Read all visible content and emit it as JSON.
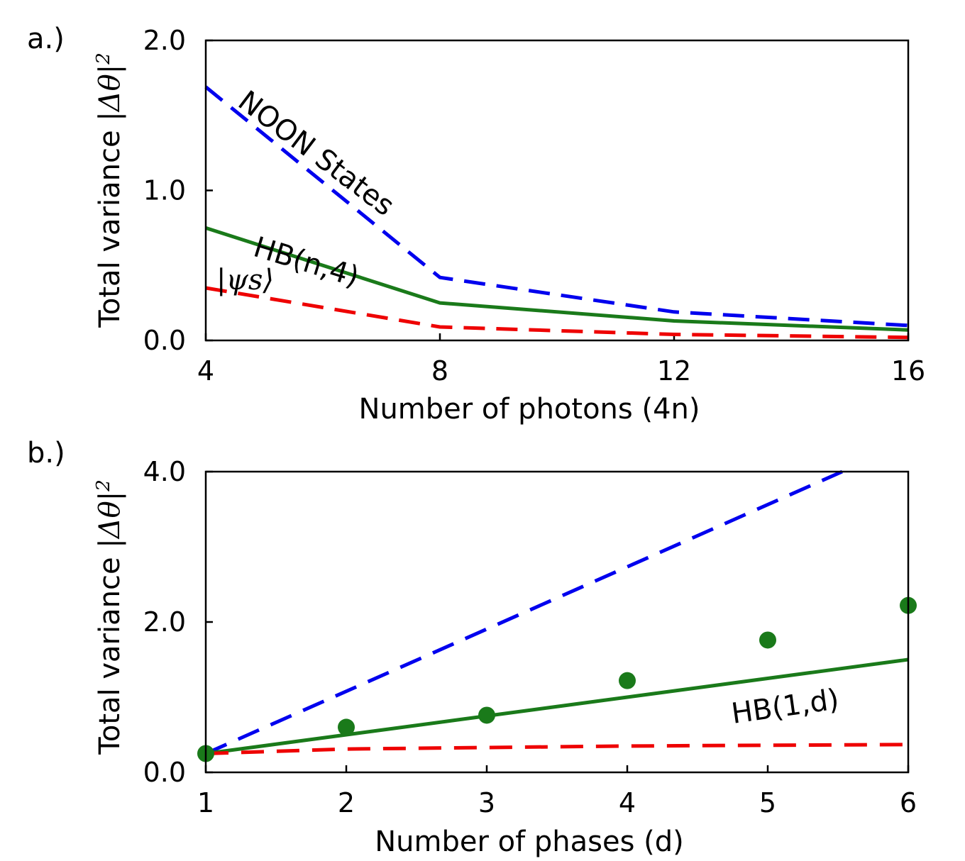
{
  "chart_data": [
    {
      "panel_label": "a.)",
      "type": "line",
      "xlabel": "Number of photons (4n)",
      "ylabel_prefix": "Total variance ",
      "ylabel_math": "|Δθ|",
      "ylabel_exp": "2",
      "xlim": [
        4,
        16
      ],
      "ylim": [
        0,
        2
      ],
      "xticks": [
        4,
        8,
        12,
        16
      ],
      "xtick_labels": [
        "4",
        "8",
        "12",
        "16"
      ],
      "yticks": [
        0,
        1,
        2
      ],
      "ytick_labels": [
        "0.0",
        "1.0",
        "2.0"
      ],
      "series": [
        {
          "name": "NOON States",
          "color": "#0000ee",
          "style": "dashed",
          "x": [
            4,
            8,
            12,
            16
          ],
          "y": [
            1.69,
            0.42,
            0.19,
            0.1
          ]
        },
        {
          "name": "HB(n,4)",
          "color": "#1a7a1a",
          "style": "solid",
          "x": [
            4,
            8,
            12,
            16
          ],
          "y": [
            0.75,
            0.25,
            0.13,
            0.07
          ]
        },
        {
          "name": "|ψs⟩",
          "color": "#ee0000",
          "style": "dashed",
          "x": [
            4,
            8,
            12,
            16
          ],
          "y": [
            0.35,
            0.09,
            0.04,
            0.02
          ]
        }
      ],
      "annotations": [
        "NOON States",
        "HB(n,4)",
        "|ψs⟩"
      ]
    },
    {
      "panel_label": "b.)",
      "type": "line",
      "xlabel": "Number of phases (d)",
      "ylabel_prefix": "Total variance ",
      "ylabel_math": "|Δθ|",
      "ylabel_exp": "2",
      "xlim": [
        1,
        6
      ],
      "ylim": [
        0,
        4
      ],
      "xticks": [
        1,
        2,
        3,
        4,
        5,
        6
      ],
      "xtick_labels": [
        "1",
        "2",
        "3",
        "4",
        "5",
        "6"
      ],
      "yticks": [
        0,
        2,
        4
      ],
      "ytick_labels": [
        "0.0",
        "2.0",
        "4.0"
      ],
      "series": [
        {
          "name": "",
          "color": "#0000ee",
          "style": "dashed",
          "x": [
            1,
            5.53
          ],
          "y": [
            0.25,
            4.0
          ]
        },
        {
          "name": "HB(1,d)",
          "color": "#1a7a1a",
          "style": "solid",
          "x": [
            1,
            6
          ],
          "y": [
            0.25,
            1.5
          ]
        },
        {
          "name": "",
          "color": "#ee0000",
          "style": "dashed",
          "x": [
            1,
            2,
            3,
            4,
            5,
            6
          ],
          "y": [
            0.25,
            0.31,
            0.33,
            0.35,
            0.36,
            0.37
          ]
        },
        {
          "name": "",
          "color": "#1a7a1a",
          "style": "markers",
          "x": [
            1,
            2,
            3,
            4,
            5,
            6
          ],
          "y": [
            0.25,
            0.6,
            0.76,
            1.22,
            1.76,
            2.22
          ]
        }
      ],
      "annotations": [
        "HB(1,d)"
      ]
    }
  ]
}
